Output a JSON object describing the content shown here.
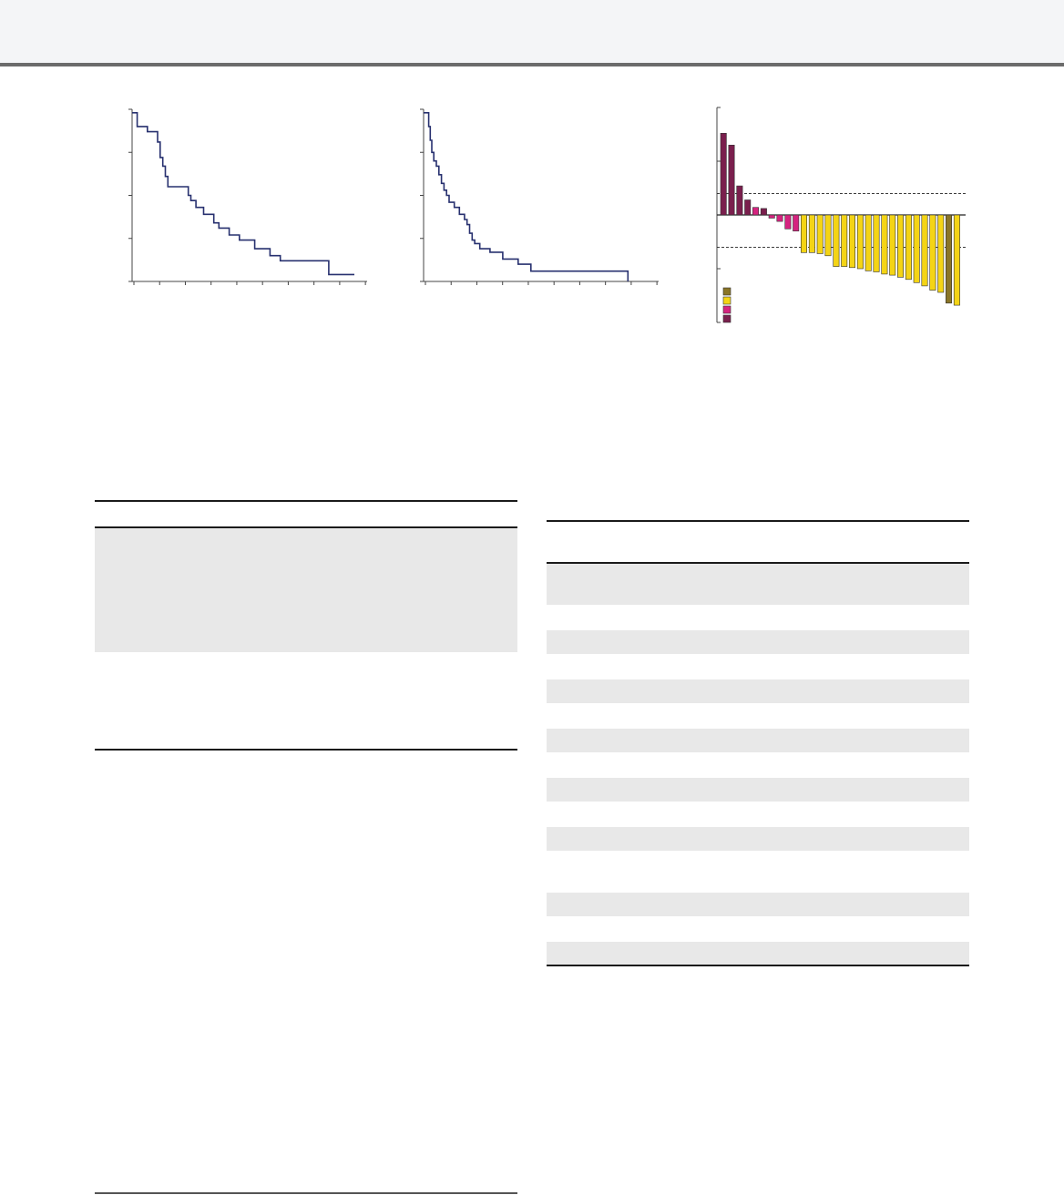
{
  "colors": {
    "curve": "#27306f",
    "axis": "#444444",
    "pd": "#7a1f4d",
    "sd": "#d5237f",
    "pr": "#f4d415",
    "cr": "#8a7527",
    "table_shade": "#e8e8e8"
  },
  "chart_data": [
    {
      "type": "line",
      "step": true,
      "xlim": [
        0,
        46
      ],
      "ylim": [
        0,
        1
      ],
      "x_ticks": 10,
      "y_ticks": 5,
      "series": [
        {
          "x": [
            0,
            1,
            1,
            3,
            3,
            5,
            5,
            5.5,
            5.5,
            6,
            6,
            6.5,
            6.5,
            7,
            7,
            11,
            11,
            11.5,
            11.5,
            12.5,
            12.5,
            14,
            14,
            16,
            16,
            17,
            17,
            19,
            19,
            21,
            21,
            24,
            24,
            27,
            27,
            29,
            29,
            38.5,
            38.5,
            43.5
          ],
          "y": [
            0.98,
            0.98,
            0.9,
            0.9,
            0.87,
            0.87,
            0.81,
            0.81,
            0.72,
            0.72,
            0.67,
            0.67,
            0.61,
            0.61,
            0.55,
            0.55,
            0.5,
            0.5,
            0.47,
            0.47,
            0.43,
            0.43,
            0.39,
            0.39,
            0.34,
            0.34,
            0.31,
            0.31,
            0.27,
            0.27,
            0.24,
            0.24,
            0.19,
            0.19,
            0.15,
            0.15,
            0.12,
            0.12,
            0.04,
            0.04
          ]
        }
      ]
    },
    {
      "type": "line",
      "step": true,
      "xlim": [
        0,
        46
      ],
      "ylim": [
        0,
        1
      ],
      "x_ticks": 10,
      "y_ticks": 5,
      "series": [
        {
          "x": [
            0,
            1,
            1,
            1.3,
            1.3,
            1.6,
            1.6,
            2,
            2,
            2.5,
            2.5,
            3,
            3,
            3.5,
            3.5,
            4,
            4,
            4.5,
            4.5,
            5,
            5,
            6,
            6,
            7,
            7,
            8,
            8,
            8.5,
            8.5,
            9,
            9,
            9.5,
            9.5,
            10,
            10,
            11,
            11,
            13,
            13,
            15.5,
            15.5,
            18.5,
            18.5,
            21,
            21,
            40,
            40
          ],
          "y": [
            0.98,
            0.98,
            0.9,
            0.9,
            0.82,
            0.82,
            0.75,
            0.75,
            0.7,
            0.7,
            0.67,
            0.67,
            0.62,
            0.62,
            0.57,
            0.57,
            0.53,
            0.53,
            0.5,
            0.5,
            0.46,
            0.46,
            0.43,
            0.43,
            0.39,
            0.39,
            0.36,
            0.36,
            0.33,
            0.33,
            0.28,
            0.28,
            0.24,
            0.24,
            0.22,
            0.22,
            0.19,
            0.19,
            0.17,
            0.17,
            0.13,
            0.13,
            0.1,
            0.1,
            0.06,
            0.06,
            0.0
          ]
        }
      ]
    },
    {
      "type": "bar",
      "ylim": [
        -100,
        100
      ],
      "reference_lines": [
        20,
        -30
      ],
      "y_ticks": [
        -100,
        -50,
        0,
        50,
        100
      ],
      "values": [
        76,
        65,
        27,
        14,
        7,
        6,
        -3,
        -6,
        -13,
        -15,
        -35,
        -35,
        -36,
        -38,
        -48,
        -48,
        -49,
        -50,
        -52,
        -53,
        -55,
        -56,
        -58,
        -60,
        -63,
        -66,
        -70,
        -72,
        -82,
        -84
      ],
      "categories": [
        "PD",
        "PD",
        "PD",
        "PD",
        "SD",
        "PD",
        "SD",
        "SD",
        "SD",
        "SD",
        "PR",
        "PR",
        "PR",
        "PR",
        "PR",
        "PR",
        "PR",
        "PR",
        "PR",
        "PR",
        "PR",
        "PR",
        "PR",
        "PR",
        "PR",
        "PR",
        "PR",
        "PR",
        "CR",
        "PR"
      ],
      "legend": {
        "placement": "bottom-left",
        "entries": [
          {
            "color": "#8a7527"
          },
          {
            "color": "#f4d415"
          },
          {
            "color": "#d5237f"
          },
          {
            "color": "#7a1f4d"
          }
        ]
      }
    }
  ]
}
